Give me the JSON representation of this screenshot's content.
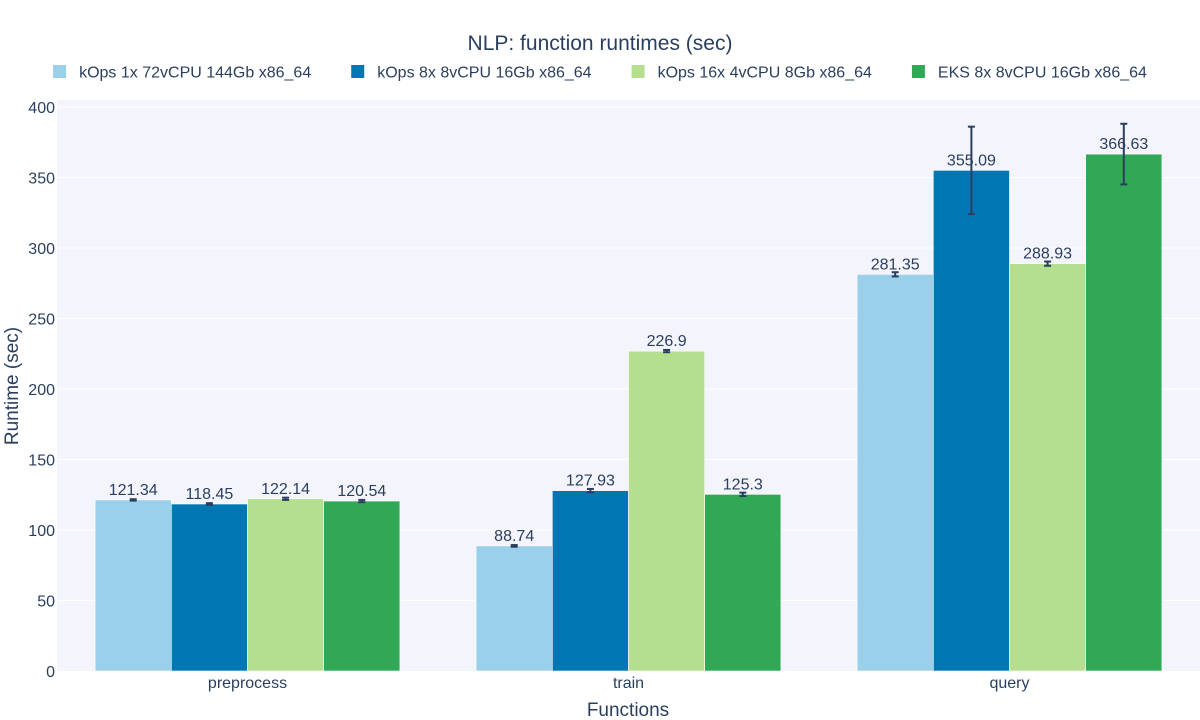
{
  "chart_data": {
    "type": "bar",
    "title": "NLP: function runtimes (sec)",
    "xlabel": "Functions",
    "ylabel": "Runtime (sec)",
    "categories": [
      "preprocess",
      "train",
      "query"
    ],
    "ylim": [
      0,
      405
    ],
    "yticks": [
      0,
      50,
      100,
      150,
      200,
      250,
      300,
      350,
      400
    ],
    "grid": true,
    "legend_position": "top",
    "plot_bgcolor": "#f4f4fc",
    "error_bar_color": "#2a3f5f",
    "series": [
      {
        "name": "kOps 1x 72vCPU 144Gb x86_64",
        "color": "#9ad0ea",
        "values": [
          121.34,
          88.74,
          281.35
        ],
        "labels": [
          "121.34",
          "88.74",
          "281.35"
        ],
        "errors": [
          0.5,
          0.6,
          1.5
        ]
      },
      {
        "name": "kOps 8x 8vCPU 16Gb x86_64",
        "color": "#0077b3",
        "values": [
          118.45,
          127.93,
          355.09
        ],
        "labels": [
          "118.45",
          "127.93",
          "355.09"
        ],
        "errors": [
          0.6,
          1.2,
          31
        ]
      },
      {
        "name": "kOps 16x 4vCPU 8Gb x86_64",
        "color": "#b4df8e",
        "values": [
          122.14,
          226.9,
          288.93
        ],
        "labels": [
          "122.14",
          "226.9",
          "288.93"
        ],
        "errors": [
          0.8,
          0.8,
          1.5
        ]
      },
      {
        "name": "EKS 8x 8vCPU 16Gb x86_64",
        "color": "#31a855",
        "values": [
          120.54,
          125.3,
          366.63
        ],
        "labels": [
          "120.54",
          "125.3",
          "366.63"
        ],
        "errors": [
          0.8,
          1.2,
          21.5
        ]
      }
    ]
  }
}
